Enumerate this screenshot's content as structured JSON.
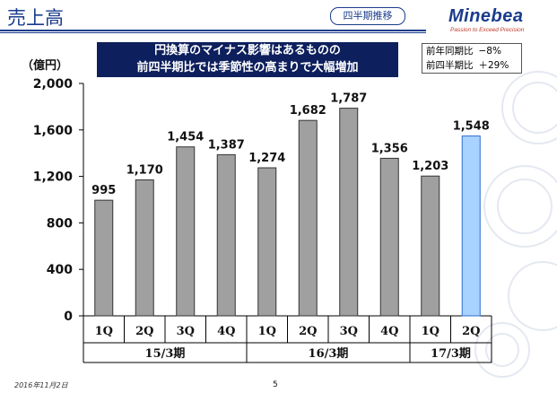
{
  "header": {
    "title": "売上高",
    "badge": "四半期推移",
    "logo": "Minebea",
    "tagline": "Passion to Exceed Precision"
  },
  "headline": {
    "line1": "円換算のマイナス影響はあるものの",
    "line2": "前四半期比では季節性の高まりで大幅増加"
  },
  "kpi": [
    {
      "label": "前年同期比",
      "value": "−8%"
    },
    {
      "label": "前四半期比",
      "value": "＋29%"
    }
  ],
  "footer": {
    "date": "2016年11月2日",
    "page": "5"
  },
  "colors": {
    "bar": "#a0a0a0",
    "highlight": "#a8d2ff",
    "highlight_border": "#2f6fd0",
    "navy": "#0d1f5c"
  },
  "chart_data": {
    "type": "bar",
    "ylabel": "（億円）",
    "ylim": [
      0,
      2000
    ],
    "yticks": [
      0,
      400,
      800,
      1200,
      1600,
      2000
    ],
    "ytick_labels": [
      "0",
      "400",
      "800",
      "1,200",
      "1,600",
      "2,000"
    ],
    "categories": [
      "1Q",
      "2Q",
      "3Q",
      "4Q",
      "1Q",
      "2Q",
      "3Q",
      "4Q",
      "1Q",
      "2Q"
    ],
    "values": [
      995,
      1170,
      1454,
      1387,
      1274,
      1682,
      1787,
      1356,
      1203,
      1548
    ],
    "labels": [
      "995",
      "1,170",
      "1,454",
      "1,387",
      "1,274",
      "1,682",
      "1,787",
      "1,356",
      "1,203",
      "1,548"
    ],
    "highlight_index": 9,
    "groups": [
      {
        "label": "15/3期",
        "count": 4
      },
      {
        "label": "16/3期",
        "count": 4
      },
      {
        "label": "17/3期",
        "count": 2
      }
    ]
  }
}
